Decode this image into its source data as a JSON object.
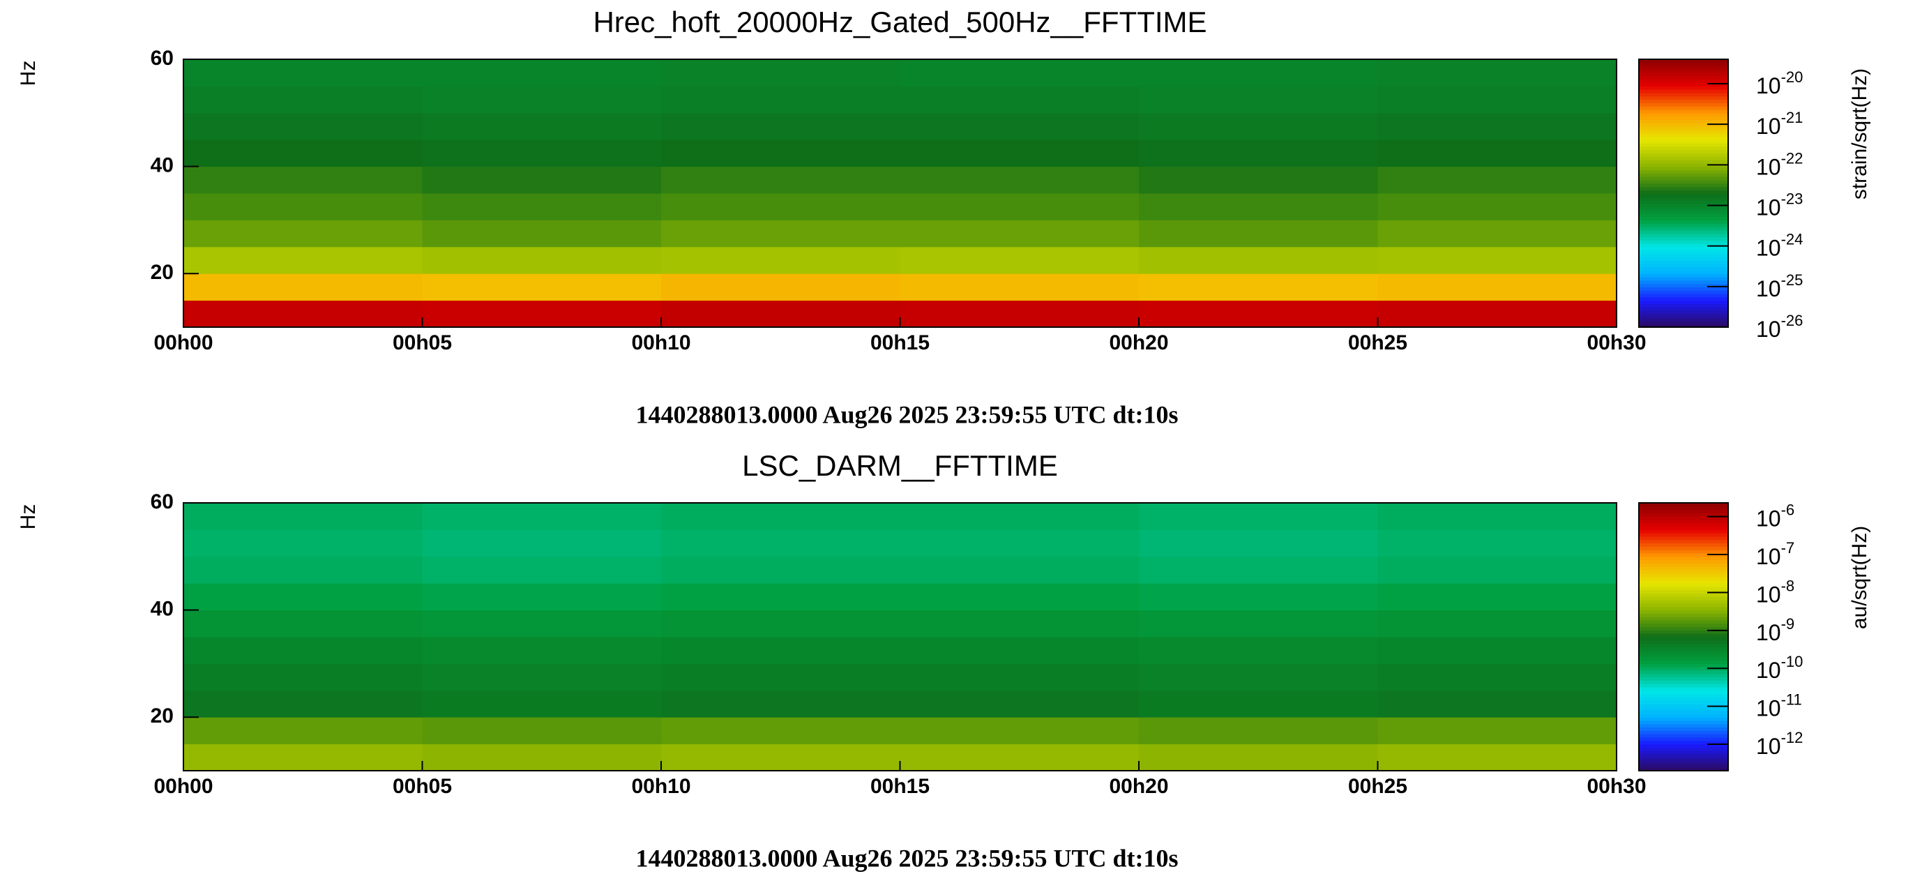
{
  "chart_data": [
    {
      "type": "heatmap",
      "title": "Hrec_hoft_20000Hz_Gated_500Hz__FFTTIME",
      "ylabel": "Hz",
      "zlabel": "strain/sqrt(Hz)",
      "footer": "1440288013.0000 Aug26 2025 23:59:55 UTC dt:10s",
      "xlim": [
        0,
        30
      ],
      "xticks": [
        {
          "value": 0,
          "label": "00h00"
        },
        {
          "value": 5,
          "label": "00h05"
        },
        {
          "value": 10,
          "label": "00h10"
        },
        {
          "value": 15,
          "label": "00h15"
        },
        {
          "value": 20,
          "label": "00h20"
        },
        {
          "value": 25,
          "label": "00h25"
        },
        {
          "value": 30,
          "label": "00h30"
        }
      ],
      "ylim": [
        10,
        60
      ],
      "yticks": [
        20,
        40,
        60
      ],
      "x_bins": [
        0,
        5,
        10,
        15,
        20,
        25,
        30
      ],
      "y_bins": [
        10,
        15,
        20,
        25,
        30,
        35,
        40,
        45,
        50,
        55,
        60
      ],
      "values": [
        [
          1.5e-20,
          1.4e-20,
          1.6e-20,
          1.5e-20,
          1.4e-20,
          1.5e-20
        ],
        [
          1e-21,
          9e-22,
          1.1e-21,
          1e-21,
          9e-22,
          1e-21
        ],
        [
          1.5e-22,
          1.3e-22,
          1.4e-22,
          1.5e-22,
          1.3e-22,
          1.4e-22
        ],
        [
          6e-23,
          5e-23,
          6e-23,
          6e-23,
          5e-23,
          6e-23
        ],
        [
          4e-23,
          3.5e-23,
          4e-23,
          4e-23,
          3.5e-23,
          4e-23
        ],
        [
          3e-23,
          2.5e-23,
          3e-23,
          3e-23,
          2.5e-23,
          3e-23
        ],
        [
          2e-23,
          1.8e-23,
          2e-23,
          2e-23,
          1.8e-23,
          2e-23
        ],
        [
          1.5e-23,
          1.4e-23,
          1.5e-23,
          1.5e-23,
          1.4e-23,
          1.5e-23
        ],
        [
          1.2e-23,
          1.1e-23,
          1.2e-23,
          1.2e-23,
          1.1e-23,
          1.2e-23
        ],
        [
          1e-23,
          1e-23,
          1.1e-23,
          1e-23,
          1e-23,
          1.1e-23
        ]
      ],
      "zlim": [
        1e-26,
        4e-20
      ],
      "zscale": "log",
      "zticks": [
        {
          "value": 1e-20,
          "base": "10",
          "exponent": "-20"
        },
        {
          "value": 1e-21,
          "base": "10",
          "exponent": "-21"
        },
        {
          "value": 1e-22,
          "base": "10",
          "exponent": "-22"
        },
        {
          "value": 1e-23,
          "base": "10",
          "exponent": "-23"
        },
        {
          "value": 1e-24,
          "base": "10",
          "exponent": "-24"
        },
        {
          "value": 1e-25,
          "base": "10",
          "exponent": "-25"
        },
        {
          "value": 1e-26,
          "base": "10",
          "exponent": "-26"
        }
      ],
      "colormap": [
        "#2b0a5e",
        "#1a1aff",
        "#00b4ff",
        "#00e6e6",
        "#00a040",
        "#0f6e18",
        "#8cb400",
        "#e6e600",
        "#ff9900",
        "#e60000",
        "#8c0000"
      ]
    },
    {
      "type": "heatmap",
      "title": "LSC_DARM__FFTTIME",
      "ylabel": "Hz",
      "zlabel": "au/sqrt(Hz)",
      "footer": "1440288013.0000 Aug26 2025 23:59:55 UTC dt:10s",
      "xlim": [
        0,
        30
      ],
      "xticks": [
        {
          "value": 0,
          "label": "00h00"
        },
        {
          "value": 5,
          "label": "00h05"
        },
        {
          "value": 10,
          "label": "00h10"
        },
        {
          "value": 15,
          "label": "00h15"
        },
        {
          "value": 20,
          "label": "00h20"
        },
        {
          "value": 25,
          "label": "00h25"
        },
        {
          "value": 30,
          "label": "00h30"
        }
      ],
      "ylim": [
        10,
        60
      ],
      "yticks": [
        20,
        40,
        60
      ],
      "x_bins": [
        0,
        5,
        10,
        15,
        20,
        25,
        30
      ],
      "y_bins": [
        10,
        15,
        20,
        25,
        30,
        35,
        40,
        45,
        50,
        55,
        60
      ],
      "values": [
        [
          4e-09,
          3.5e-09,
          4e-09,
          4e-09,
          3.5e-09,
          4e-09
        ],
        [
          2e-09,
          1.8e-09,
          2e-09,
          2e-09,
          1.8e-09,
          2e-09
        ],
        [
          5e-10,
          4.5e-10,
          5e-10,
          5e-10,
          4.5e-10,
          5e-10
        ],
        [
          4e-10,
          3.5e-10,
          4e-10,
          4e-10,
          3.5e-10,
          4e-10
        ],
        [
          3e-10,
          2.8e-10,
          3e-10,
          3e-10,
          2.8e-10,
          3e-10
        ],
        [
          2e-10,
          1.8e-10,
          2e-10,
          2e-10,
          1.8e-10,
          2e-10
        ],
        [
          1.3e-10,
          1.2e-10,
          1.3e-10,
          1.3e-10,
          1.2e-10,
          1.3e-10
        ],
        [
          1e-10,
          9e-11,
          1e-10,
          1e-10,
          9e-11,
          1e-10
        ],
        [
          9e-11,
          8e-11,
          9e-11,
          9e-11,
          8e-11,
          9e-11
        ],
        [
          1e-10,
          9e-11,
          1e-10,
          1e-10,
          9e-11,
          1e-10
        ]
      ],
      "zlim": [
        2e-13,
        2.3e-06
      ],
      "zscale": "log",
      "zticks": [
        {
          "value": 1e-06,
          "base": "10",
          "exponent": "-6"
        },
        {
          "value": 1e-07,
          "base": "10",
          "exponent": "-7"
        },
        {
          "value": 1e-08,
          "base": "10",
          "exponent": "-8"
        },
        {
          "value": 1e-09,
          "base": "10",
          "exponent": "-9"
        },
        {
          "value": 1e-10,
          "base": "10",
          "exponent": "-10"
        },
        {
          "value": 1e-11,
          "base": "10",
          "exponent": "-11"
        },
        {
          "value": 1e-12,
          "base": "10",
          "exponent": "-12"
        }
      ],
      "colormap": [
        "#2b0a5e",
        "#1a1aff",
        "#00b4ff",
        "#00e6e6",
        "#00a040",
        "#0f6e18",
        "#8cb400",
        "#e6e600",
        "#ff9900",
        "#e60000",
        "#8c0000"
      ]
    }
  ]
}
